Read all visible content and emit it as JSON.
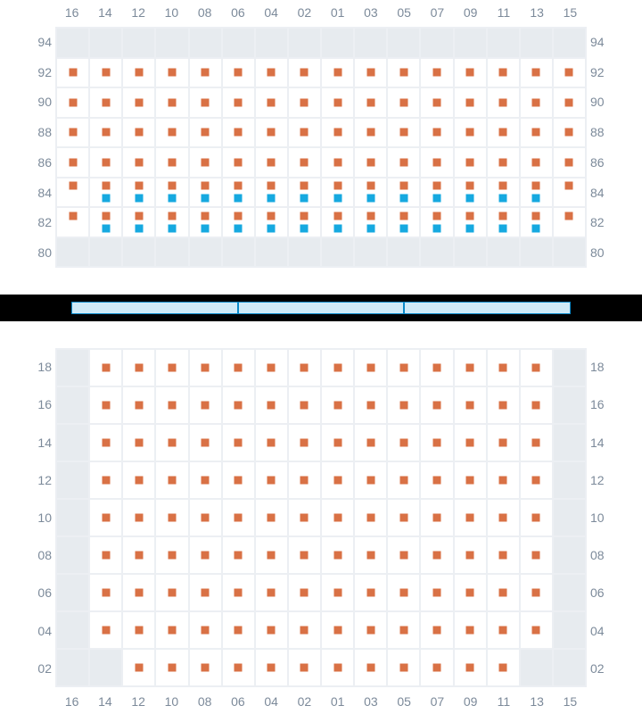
{
  "columns": [
    "16",
    "14",
    "12",
    "10",
    "08",
    "06",
    "04",
    "02",
    "01",
    "03",
    "05",
    "07",
    "09",
    "11",
    "13",
    "15"
  ],
  "top": {
    "rows": [
      "94",
      "92",
      "90",
      "88",
      "86",
      "84",
      "82",
      "80"
    ],
    "grid": {
      "cols": 16,
      "cells": {
        "gray_rows": [
          0,
          7
        ],
        "full_orange_rows": [
          1,
          2,
          3,
          4
        ],
        "double_rows": [
          5,
          6
        ],
        "double_orange_all_cols": true,
        "double_blue_cols_start": 1,
        "double_blue_cols_end": 14
      }
    }
  },
  "bottom": {
    "rows": [
      "18",
      "16",
      "14",
      "12",
      "10",
      "08",
      "06",
      "04",
      "02"
    ],
    "grid": {
      "cols": 16,
      "gray_cells": [
        [
          0,
          0
        ],
        [
          0,
          15
        ],
        [
          1,
          0
        ],
        [
          1,
          15
        ],
        [
          2,
          0
        ],
        [
          2,
          15
        ],
        [
          3,
          0
        ],
        [
          3,
          15
        ],
        [
          4,
          0
        ],
        [
          4,
          15
        ],
        [
          5,
          0
        ],
        [
          5,
          15
        ],
        [
          6,
          0
        ],
        [
          6,
          15
        ],
        [
          7,
          0
        ],
        [
          7,
          15
        ],
        [
          8,
          0
        ],
        [
          8,
          1
        ],
        [
          8,
          14
        ],
        [
          8,
          15
        ]
      ],
      "orange_rows_full": {
        "rows": [
          0,
          1,
          2,
          3,
          4,
          5,
          6,
          7
        ],
        "col_start": 1,
        "col_end": 14
      },
      "last_row_orange": {
        "row": 8,
        "col_start": 2,
        "col_end": 13
      }
    }
  },
  "colors": {
    "orange": "#d97145",
    "blue": "#16a9e0",
    "gray": "#e7ebef",
    "gridline": "#eceff3",
    "label": "#7c8a9a",
    "divider_bg": "#000000",
    "divider_fill": "#cfeaf7",
    "divider_border": "#0a89c8"
  },
  "divider_segments": 3
}
